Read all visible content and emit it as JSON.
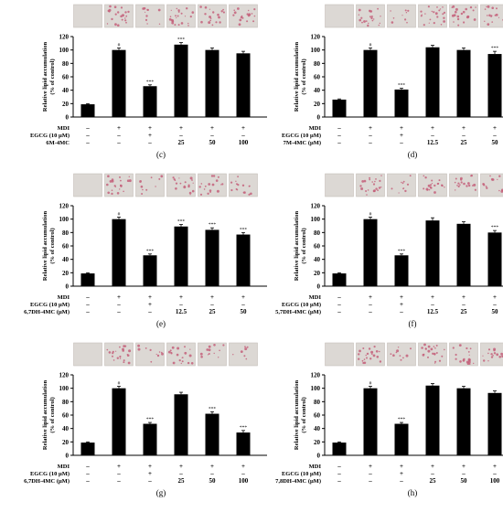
{
  "figure": {
    "ylabel_line1": "Relative lipid accumulation",
    "ylabel_line2": "(% of control)",
    "row_labels": {
      "mdi": "MDI",
      "egcg": "EGCG (10 μM)"
    },
    "symbols": {
      "minus": "–",
      "plus": "+",
      "sig_hash": "#",
      "sig_star": "***"
    },
    "colors": {
      "bar": "#000000",
      "axis": "#000000",
      "img_bg": "#dcd8d4",
      "cell": "#c4607a"
    }
  },
  "chart_data": [
    {
      "type": "bar",
      "panel": "(c)",
      "compound_label": "6M-4MC",
      "mdi": [
        "–",
        "+",
        "+",
        "+",
        "+",
        "+"
      ],
      "egcg": [
        "–",
        "–",
        "+",
        "–",
        "–",
        "–"
      ],
      "conc": [
        "–",
        "–",
        "–",
        "25",
        "50",
        "100"
      ],
      "values": [
        19,
        100,
        46,
        108,
        100,
        95
      ],
      "errors": [
        1,
        3,
        2,
        3,
        3,
        3
      ],
      "sig": [
        "",
        "#",
        "***",
        "***",
        "",
        ""
      ],
      "ylim": [
        0,
        120
      ],
      "yticks": [
        0,
        20,
        40,
        60,
        80,
        100,
        120
      ],
      "thumb_density": [
        0,
        0.95,
        0.45,
        1,
        0.9,
        0.85
      ]
    },
    {
      "type": "bar",
      "panel": "(d)",
      "compound_label": "7M-4MC (μM)",
      "mdi": [
        "–",
        "+",
        "+",
        "+",
        "+",
        "+"
      ],
      "egcg": [
        "–",
        "–",
        "+",
        "–",
        "–",
        "–"
      ],
      "conc": [
        "–",
        "–",
        "–",
        "12.5",
        "25",
        "50"
      ],
      "values": [
        26,
        100,
        41,
        104,
        100,
        94
      ],
      "errors": [
        1,
        3,
        2,
        3,
        3,
        4
      ],
      "sig": [
        "",
        "#",
        "***",
        "",
        "",
        "***"
      ],
      "ylim": [
        0,
        120
      ],
      "yticks": [
        0,
        20,
        40,
        60,
        80,
        100,
        120
      ],
      "thumb_density": [
        0,
        0.95,
        0.4,
        1,
        0.9,
        0.85
      ]
    },
    {
      "type": "bar",
      "panel": "(e)",
      "compound_label": "6,7DH-4MC (μM)",
      "mdi": [
        "–",
        "+",
        "+",
        "+",
        "+",
        "+"
      ],
      "egcg": [
        "–",
        "–",
        "+",
        "–",
        "–",
        "–"
      ],
      "conc": [
        "–",
        "–",
        "–",
        "12.5",
        "25",
        "50"
      ],
      "values": [
        19,
        100,
        46,
        89,
        84,
        77
      ],
      "errors": [
        1,
        3,
        2,
        3,
        3,
        3
      ],
      "sig": [
        "",
        "#",
        "***",
        "***",
        "***",
        "***"
      ],
      "ylim": [
        0,
        120
      ],
      "yticks": [
        0,
        20,
        40,
        60,
        80,
        100,
        120
      ],
      "thumb_density": [
        0,
        0.95,
        0.45,
        0.8,
        0.75,
        0.7
      ]
    },
    {
      "type": "bar",
      "panel": "(f)",
      "compound_label": "5,7DH-4MC (μM)",
      "mdi": [
        "–",
        "+",
        "+",
        "+",
        "+",
        "+"
      ],
      "egcg": [
        "–",
        "–",
        "+",
        "–",
        "–",
        "–"
      ],
      "conc": [
        "–",
        "–",
        "–",
        "12.5",
        "25",
        "50"
      ],
      "values": [
        19,
        100,
        46,
        98,
        93,
        80
      ],
      "errors": [
        1,
        3,
        2,
        4,
        3,
        3
      ],
      "sig": [
        "",
        "#",
        "***",
        "",
        "",
        "***"
      ],
      "ylim": [
        0,
        120
      ],
      "yticks": [
        0,
        20,
        40,
        60,
        80,
        100,
        120
      ],
      "thumb_density": [
        0,
        0.95,
        0.45,
        0.9,
        0.85,
        0.7
      ]
    },
    {
      "type": "bar",
      "panel": "(g)",
      "compound_label": "6,7DH-4MC (μM)",
      "mdi": [
        "–",
        "+",
        "+",
        "+",
        "+",
        "+"
      ],
      "egcg": [
        "–",
        "–",
        "+",
        "–",
        "–",
        "–"
      ],
      "conc": [
        "–",
        "–",
        "–",
        "25",
        "50",
        "100"
      ],
      "values": [
        19,
        100,
        47,
        91,
        62,
        34
      ],
      "errors": [
        1,
        3,
        2,
        3,
        3,
        3
      ],
      "sig": [
        "",
        "#",
        "***",
        "",
        "***",
        "***"
      ],
      "ylim": [
        0,
        120
      ],
      "yticks": [
        0,
        20,
        40,
        60,
        80,
        100,
        120
      ],
      "thumb_density": [
        0,
        0.95,
        0.45,
        0.85,
        0.55,
        0.3
      ]
    },
    {
      "type": "bar",
      "panel": "(h)",
      "compound_label": "7,8DH-4MC (μM)",
      "mdi": [
        "–",
        "+",
        "+",
        "+",
        "+",
        "+"
      ],
      "egcg": [
        "–",
        "–",
        "+",
        "–",
        "–",
        "–"
      ],
      "conc": [
        "–",
        "–",
        "–",
        "25",
        "50",
        "100"
      ],
      "values": [
        19,
        100,
        47,
        104,
        100,
        93
      ],
      "errors": [
        1,
        3,
        2,
        3,
        3,
        3
      ],
      "sig": [
        "",
        "#",
        "***",
        "",
        "",
        ""
      ],
      "ylim": [
        0,
        120
      ],
      "yticks": [
        0,
        20,
        40,
        60,
        80,
        100,
        120
      ],
      "thumb_density": [
        0,
        0.95,
        0.45,
        1,
        0.9,
        0.85
      ]
    }
  ]
}
